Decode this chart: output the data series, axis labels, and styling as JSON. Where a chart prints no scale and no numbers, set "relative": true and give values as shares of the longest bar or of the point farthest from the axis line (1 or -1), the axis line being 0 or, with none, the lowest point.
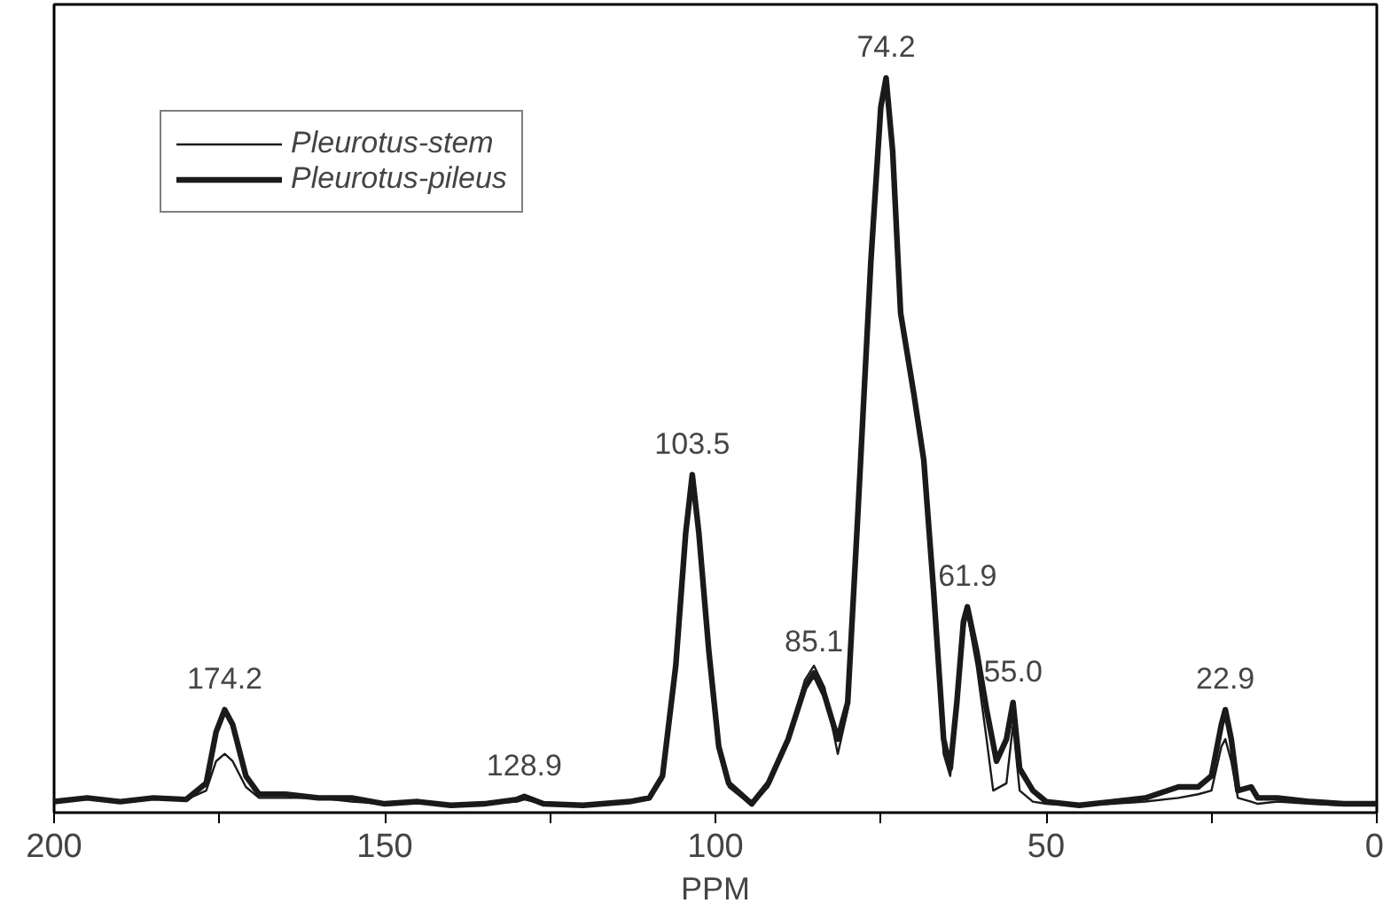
{
  "chart_data": {
    "type": "line",
    "relative": true,
    "xlabel": "PPM",
    "xlim": [
      200,
      0
    ],
    "xticks": [
      200,
      {
        "value": 175,
        "label": null
      },
      150,
      {
        "value": 125,
        "label": null
      },
      100,
      {
        "value": 75,
        "label": null
      },
      50,
      {
        "value": 25,
        "label": null
      },
      0
    ],
    "grid": false,
    "legend": "top left",
    "line_style": "solid",
    "marker": "none",
    "series": [
      {
        "name": "Pleurotus-stem",
        "color": "#1a1a1a",
        "x": [
          200,
          195,
          190,
          185,
          180,
          177,
          175.5,
          174.2,
          173,
          171,
          169,
          165,
          160,
          155,
          150,
          145,
          140,
          135,
          130,
          128.9,
          126,
          120,
          113,
          110,
          108,
          106,
          104.5,
          103.5,
          102.5,
          101,
          99.5,
          98,
          94.5,
          92,
          89,
          86.5,
          85.1,
          83.5,
          81.5,
          80,
          78.5,
          76.5,
          75,
          74.2,
          73.2,
          72,
          70,
          68.5,
          67,
          65.5,
          64.5,
          63.5,
          62.5,
          61.9,
          60.5,
          59,
          58,
          56,
          55,
          54,
          52,
          50,
          45,
          40,
          35,
          30,
          27,
          25,
          23.5,
          22.9,
          22,
          21,
          19,
          18,
          15,
          10,
          5,
          0
        ],
        "values": [
          0.015,
          0.02,
          0.015,
          0.02,
          0.018,
          0.03,
          0.07,
          0.08,
          0.07,
          0.035,
          0.02,
          0.02,
          0.02,
          0.015,
          0.012,
          0.015,
          0.01,
          0.012,
          0.015,
          0.018,
          0.012,
          0.01,
          0.015,
          0.018,
          0.045,
          0.19,
          0.37,
          0.45,
          0.37,
          0.22,
          0.09,
          0.035,
          0.01,
          0.035,
          0.1,
          0.18,
          0.2,
          0.17,
          0.08,
          0.14,
          0.39,
          0.74,
          0.95,
          0.99,
          0.9,
          0.69,
          0.57,
          0.47,
          0.28,
          0.08,
          0.05,
          0.14,
          0.25,
          0.27,
          0.2,
          0.1,
          0.03,
          0.04,
          0.12,
          0.03,
          0.015,
          0.012,
          0.01,
          0.012,
          0.015,
          0.02,
          0.025,
          0.03,
          0.09,
          0.1,
          0.07,
          0.02,
          0.015,
          0.012,
          0.015,
          0.012,
          0.01,
          0.012
        ]
      },
      {
        "name": "Pleurotus-pileus",
        "color": "#1a1a1a",
        "x": [
          200,
          195,
          190,
          185,
          180,
          177,
          175.5,
          174.2,
          173,
          171,
          169,
          165,
          160,
          155,
          150,
          145,
          140,
          135,
          130,
          128.9,
          126,
          120,
          113,
          110,
          108,
          106,
          104.5,
          103.5,
          102.5,
          101,
          99.5,
          98,
          94.5,
          92,
          89,
          86.5,
          85.1,
          83.5,
          81.5,
          80,
          78.5,
          76.5,
          75,
          74.2,
          73.2,
          72,
          70,
          68.5,
          67,
          65.5,
          64.5,
          63.5,
          62.5,
          61.9,
          60.5,
          59,
          57.5,
          56,
          55,
          54,
          52,
          50,
          45,
          40,
          35,
          30,
          27,
          25,
          23.5,
          22.9,
          22,
          21,
          19,
          18,
          15,
          10,
          5,
          0
        ],
        "values": [
          0.015,
          0.02,
          0.015,
          0.02,
          0.018,
          0.04,
          0.11,
          0.14,
          0.12,
          0.05,
          0.025,
          0.025,
          0.02,
          0.02,
          0.012,
          0.015,
          0.01,
          0.012,
          0.018,
          0.022,
          0.012,
          0.01,
          0.015,
          0.02,
          0.05,
          0.2,
          0.38,
          0.46,
          0.38,
          0.22,
          0.09,
          0.04,
          0.012,
          0.04,
          0.1,
          0.17,
          0.19,
          0.16,
          0.1,
          0.15,
          0.4,
          0.75,
          0.96,
          1.0,
          0.9,
          0.68,
          0.57,
          0.48,
          0.3,
          0.1,
          0.06,
          0.15,
          0.26,
          0.28,
          0.22,
          0.14,
          0.07,
          0.1,
          0.15,
          0.06,
          0.03,
          0.015,
          0.01,
          0.015,
          0.02,
          0.035,
          0.035,
          0.05,
          0.12,
          0.14,
          0.1,
          0.03,
          0.035,
          0.02,
          0.02,
          0.015,
          0.012,
          0.012
        ]
      }
    ],
    "annotations": [
      {
        "text": "174.2",
        "x": 174.2,
        "y": 0.14
      },
      {
        "text": "128.9",
        "x": 128.9,
        "y": 0.022
      },
      {
        "text": "103.5",
        "x": 103.5,
        "y": 0.46
      },
      {
        "text": "85.1",
        "x": 85.1,
        "y": 0.19
      },
      {
        "text": "74.2",
        "x": 74.2,
        "y": 1.0
      },
      {
        "text": "61.9",
        "x": 61.9,
        "y": 0.28
      },
      {
        "text": "55.0",
        "x": 55.0,
        "y": 0.15
      },
      {
        "text": "22.9",
        "x": 22.9,
        "y": 0.14
      }
    ]
  }
}
